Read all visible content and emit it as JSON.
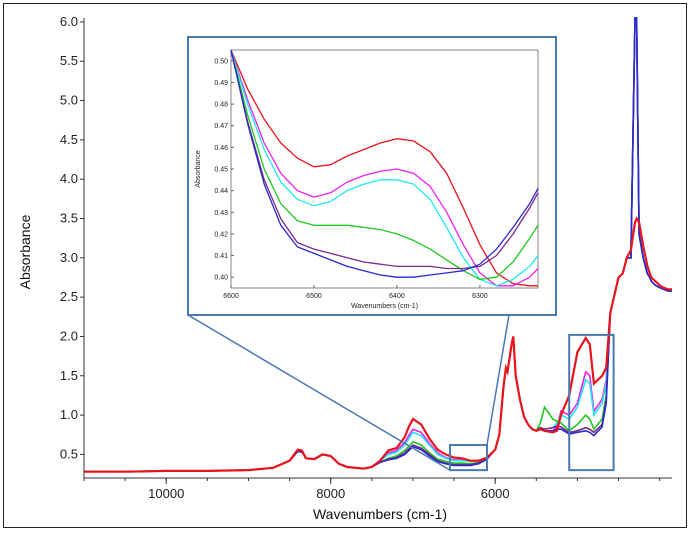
{
  "chart_data": {
    "type": "line",
    "main": {
      "xlabel": "Wavenumbers (cm-1)",
      "ylabel": "Absorbance",
      "xlim": [
        11000,
        3850
      ],
      "ylim": [
        0.2,
        6.05
      ],
      "xticks": [
        10000,
        8000,
        6000
      ],
      "xtick_labels": [
        "10000",
        "8000",
        "6000"
      ],
      "yticks": [
        0.5,
        1.0,
        1.5,
        2.0,
        2.5,
        3.0,
        3.5,
        4.0,
        4.5,
        5.0,
        5.5,
        6.0
      ],
      "ytick_labels": [
        "0.5",
        "1.0",
        "1.5",
        "2.0",
        "2.5",
        "3.0",
        "3.5",
        "4.0",
        "4.5",
        "5.0",
        "5.5",
        "6.0"
      ],
      "x": [
        11000,
        10500,
        10000,
        9500,
        9000,
        8700,
        8500,
        8400,
        8350,
        8300,
        8200,
        8100,
        8000,
        7900,
        7800,
        7600,
        7500,
        7400,
        7300,
        7200,
        7100,
        7050,
        7000,
        6900,
        6800,
        6700,
        6600,
        6500,
        6400,
        6300,
        6200,
        6100,
        6000,
        5950,
        5900,
        5870,
        5850,
        5800,
        5780,
        5750,
        5700,
        5650,
        5600,
        5550,
        5500,
        5450,
        5400,
        5300,
        5250,
        5200,
        5100,
        5000,
        4900,
        4850,
        4800,
        4700,
        4650,
        4600,
        4500,
        4450,
        4400,
        4350,
        4300,
        4280,
        4250,
        4200,
        4150,
        4120,
        4100,
        4050,
        4000,
        3950,
        3900,
        3850
      ],
      "series": [
        {
          "color": "#e8131b",
          "values": [
            0.28,
            0.28,
            0.29,
            0.29,
            0.3,
            0.33,
            0.42,
            0.56,
            0.55,
            0.45,
            0.44,
            0.5,
            0.48,
            0.38,
            0.34,
            0.32,
            0.34,
            0.42,
            0.55,
            0.58,
            0.72,
            0.85,
            0.95,
            0.88,
            0.7,
            0.56,
            0.5,
            0.46,
            0.45,
            0.42,
            0.42,
            0.46,
            0.56,
            0.75,
            1.35,
            1.6,
            1.55,
            1.9,
            2.0,
            1.5,
            1.2,
            0.98,
            0.88,
            0.82,
            0.8,
            0.82,
            0.8,
            0.78,
            0.8,
            1.0,
            1.25,
            1.8,
            1.98,
            1.9,
            1.4,
            1.5,
            1.6,
            2.3,
            2.75,
            2.8,
            3.0,
            3.1,
            3.45,
            3.5,
            3.45,
            3.15,
            2.9,
            2.8,
            2.75,
            2.7,
            2.65,
            2.62,
            2.6,
            2.6
          ]
        },
        {
          "color": "#ee20ee",
          "values": [
            0.28,
            0.28,
            0.29,
            0.29,
            0.3,
            0.33,
            0.42,
            0.55,
            0.54,
            0.45,
            0.44,
            0.5,
            0.48,
            0.38,
            0.34,
            0.32,
            0.34,
            0.42,
            0.52,
            0.55,
            0.65,
            0.74,
            0.82,
            0.78,
            0.64,
            0.52,
            0.46,
            0.43,
            0.43,
            0.41,
            0.42,
            0.46,
            0.56,
            0.75,
            1.35,
            1.6,
            1.55,
            1.9,
            2.0,
            1.5,
            1.2,
            0.98,
            0.88,
            0.82,
            0.8,
            0.82,
            0.8,
            0.8,
            0.85,
            1.05,
            1.0,
            1.15,
            1.55,
            1.5,
            1.05,
            1.2,
            1.45,
            2.3,
            2.75,
            2.8,
            3.0,
            3.0,
            6.05,
            6.05,
            3.3,
            3.0,
            2.8,
            2.75,
            2.7,
            2.65,
            2.62,
            2.6,
            2.58,
            2.58
          ]
        },
        {
          "color": "#1fe8f0",
          "values": [
            0.28,
            0.28,
            0.29,
            0.29,
            0.3,
            0.33,
            0.42,
            0.55,
            0.54,
            0.45,
            0.44,
            0.5,
            0.48,
            0.38,
            0.34,
            0.32,
            0.34,
            0.42,
            0.5,
            0.53,
            0.62,
            0.7,
            0.78,
            0.74,
            0.62,
            0.5,
            0.45,
            0.42,
            0.42,
            0.41,
            0.42,
            0.46,
            0.56,
            0.75,
            1.35,
            1.6,
            1.55,
            1.9,
            2.0,
            1.5,
            1.2,
            0.98,
            0.88,
            0.82,
            0.8,
            0.84,
            0.82,
            0.84,
            0.9,
            1.0,
            0.95,
            1.1,
            1.45,
            1.4,
            1.0,
            1.15,
            1.4,
            2.3,
            2.75,
            2.8,
            3.0,
            3.0,
            6.05,
            6.05,
            3.3,
            3.0,
            2.8,
            2.75,
            2.7,
            2.65,
            2.62,
            2.6,
            2.58,
            2.58
          ]
        },
        {
          "color": "#1ec81e",
          "values": [
            0.28,
            0.28,
            0.29,
            0.29,
            0.3,
            0.33,
            0.42,
            0.54,
            0.53,
            0.45,
            0.44,
            0.5,
            0.48,
            0.38,
            0.34,
            0.32,
            0.34,
            0.4,
            0.45,
            0.48,
            0.55,
            0.6,
            0.66,
            0.62,
            0.52,
            0.44,
            0.41,
            0.39,
            0.39,
            0.38,
            0.4,
            0.45,
            0.56,
            0.75,
            1.35,
            1.6,
            1.55,
            1.9,
            2.0,
            1.5,
            1.2,
            0.98,
            0.88,
            0.82,
            0.8,
            0.9,
            1.1,
            0.95,
            0.92,
            0.9,
            0.8,
            0.88,
            1.0,
            0.95,
            0.82,
            0.95,
            1.25,
            2.3,
            2.75,
            2.8,
            3.0,
            3.0,
            6.05,
            6.05,
            3.3,
            3.0,
            2.8,
            2.75,
            2.7,
            2.65,
            2.62,
            2.6,
            2.58,
            2.58
          ]
        },
        {
          "color": "#7a2a8a",
          "values": [
            0.28,
            0.28,
            0.29,
            0.29,
            0.3,
            0.33,
            0.42,
            0.54,
            0.53,
            0.45,
            0.44,
            0.5,
            0.48,
            0.38,
            0.34,
            0.32,
            0.34,
            0.4,
            0.44,
            0.46,
            0.52,
            0.57,
            0.62,
            0.58,
            0.5,
            0.42,
            0.39,
            0.37,
            0.37,
            0.37,
            0.39,
            0.45,
            0.56,
            0.75,
            1.35,
            1.6,
            1.55,
            1.9,
            2.0,
            1.5,
            1.2,
            0.98,
            0.88,
            0.82,
            0.8,
            0.84,
            0.82,
            0.84,
            0.86,
            0.85,
            0.78,
            0.8,
            0.84,
            0.82,
            0.78,
            0.88,
            1.2,
            2.3,
            2.75,
            2.8,
            3.0,
            3.0,
            6.05,
            6.05,
            3.3,
            3.0,
            2.8,
            2.75,
            2.7,
            2.65,
            2.62,
            2.6,
            2.58,
            2.58
          ]
        },
        {
          "color": "#2a2ad0",
          "values": [
            0.28,
            0.28,
            0.29,
            0.29,
            0.3,
            0.33,
            0.42,
            0.54,
            0.53,
            0.45,
            0.44,
            0.5,
            0.48,
            0.38,
            0.34,
            0.32,
            0.34,
            0.4,
            0.43,
            0.45,
            0.5,
            0.55,
            0.6,
            0.56,
            0.48,
            0.41,
            0.38,
            0.36,
            0.36,
            0.36,
            0.38,
            0.44,
            0.56,
            0.75,
            1.35,
            1.6,
            1.55,
            1.9,
            2.0,
            1.5,
            1.2,
            0.98,
            0.88,
            0.82,
            0.8,
            0.82,
            0.8,
            0.8,
            0.82,
            0.82,
            0.76,
            0.78,
            0.8,
            0.78,
            0.74,
            0.85,
            1.15,
            2.3,
            2.75,
            2.8,
            3.0,
            3.0,
            6.05,
            6.05,
            3.3,
            3.0,
            2.8,
            2.75,
            2.7,
            2.65,
            2.62,
            2.6,
            2.58,
            2.58
          ]
        }
      ]
    },
    "inset": {
      "xlabel": "Wavenumbers (cm-1)",
      "ylabel": "Absorbance",
      "xlim": [
        6600,
        6230
      ],
      "ylim": [
        0.395,
        0.505
      ],
      "xticks": [
        6600,
        6500,
        6400,
        6300
      ],
      "xtick_labels": [
        "6600",
        "6500",
        "6400",
        "6300"
      ],
      "yticks": [
        0.4,
        0.41,
        0.42,
        0.43,
        0.44,
        0.45,
        0.46,
        0.47,
        0.48,
        0.49,
        0.5
      ],
      "ytick_labels": [
        "0.40",
        "0.41",
        "0.42",
        "0.43",
        "0.44",
        "0.45",
        "0.46",
        "0.47",
        "0.48",
        "0.49",
        "0.50"
      ],
      "x": [
        6600,
        6580,
        6560,
        6540,
        6520,
        6500,
        6480,
        6460,
        6440,
        6420,
        6400,
        6380,
        6360,
        6340,
        6320,
        6300,
        6280,
        6260,
        6240,
        6230
      ],
      "series": [
        {
          "color": "#e8131b",
          "values": [
            0.505,
            0.487,
            0.473,
            0.462,
            0.455,
            0.451,
            0.452,
            0.456,
            0.459,
            0.462,
            0.464,
            0.463,
            0.458,
            0.448,
            0.432,
            0.415,
            0.402,
            0.397,
            0.396,
            0.396
          ]
        },
        {
          "color": "#ee20ee",
          "values": [
            0.505,
            0.482,
            0.462,
            0.448,
            0.44,
            0.437,
            0.439,
            0.444,
            0.447,
            0.449,
            0.45,
            0.448,
            0.442,
            0.43,
            0.415,
            0.402,
            0.396,
            0.396,
            0.4,
            0.404
          ]
        },
        {
          "color": "#1fe8f0",
          "values": [
            0.505,
            0.48,
            0.459,
            0.444,
            0.436,
            0.433,
            0.435,
            0.44,
            0.443,
            0.445,
            0.445,
            0.443,
            0.436,
            0.423,
            0.409,
            0.399,
            0.396,
            0.399,
            0.405,
            0.41
          ]
        },
        {
          "color": "#1ec81e",
          "values": [
            0.505,
            0.475,
            0.45,
            0.434,
            0.426,
            0.424,
            0.424,
            0.424,
            0.423,
            0.422,
            0.42,
            0.417,
            0.413,
            0.408,
            0.403,
            0.399,
            0.4,
            0.407,
            0.418,
            0.424
          ]
        },
        {
          "color": "#7a2a8a",
          "values": [
            0.505,
            0.472,
            0.445,
            0.427,
            0.416,
            0.413,
            0.411,
            0.409,
            0.407,
            0.406,
            0.405,
            0.405,
            0.405,
            0.404,
            0.404,
            0.405,
            0.41,
            0.42,
            0.432,
            0.439
          ]
        },
        {
          "color": "#2a2ad0",
          "values": [
            0.505,
            0.471,
            0.443,
            0.424,
            0.414,
            0.411,
            0.408,
            0.405,
            0.403,
            0.401,
            0.4,
            0.4,
            0.401,
            0.402,
            0.403,
            0.406,
            0.413,
            0.423,
            0.434,
            0.441
          ]
        }
      ]
    },
    "zoom_regions": [
      {
        "x_range": [
          6550,
          6100
        ],
        "y_range": [
          0.3,
          0.62
        ],
        "zoomed": true
      },
      {
        "x_range": [
          5100,
          4560
        ],
        "y_range": [
          0.3,
          2.02
        ],
        "zoomed": false
      }
    ],
    "zoom_box_color": "#4a78b0"
  }
}
